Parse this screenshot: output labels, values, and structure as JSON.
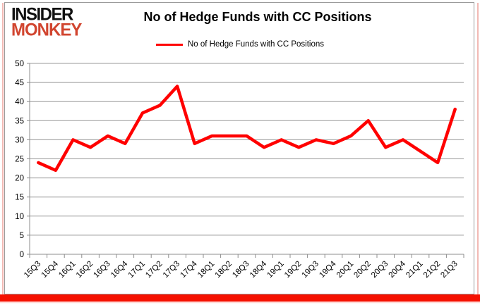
{
  "logo": {
    "line1": "INSIDER",
    "line2": "MONKEY",
    "line1_color": "#111111",
    "line2_color": "#d1452f"
  },
  "header": {
    "title": "No of Hedge Funds with CC Positions"
  },
  "legend": {
    "label": "No of Hedge Funds with CC Positions"
  },
  "chart_data": {
    "type": "line",
    "title": "No of Hedge Funds with CC Positions",
    "categories": [
      "15Q3",
      "15Q4",
      "16Q1",
      "16Q2",
      "16Q3",
      "16Q4",
      "17Q1",
      "17Q2",
      "17Q3",
      "17Q4",
      "18Q1",
      "18Q2",
      "18Q3",
      "18Q4",
      "19Q1",
      "19Q2",
      "19Q3",
      "19Q4",
      "20Q1",
      "20Q2",
      "20Q3",
      "20Q4",
      "21Q1",
      "21Q2",
      "21Q3"
    ],
    "series": [
      {
        "name": "No of Hedge Funds with CC Positions",
        "color": "#ff0000",
        "values": [
          24,
          22,
          30,
          28,
          31,
          29,
          37,
          39,
          44,
          29,
          31,
          31,
          31,
          28,
          30,
          28,
          30,
          29,
          31,
          35,
          28,
          30,
          27,
          24,
          38
        ]
      }
    ],
    "ylim": [
      0,
      50
    ],
    "y_ticks": [
      0,
      5,
      10,
      15,
      20,
      25,
      30,
      35,
      40,
      45,
      50
    ],
    "grid": true,
    "legend_position": "top",
    "xlabel": "",
    "ylabel": ""
  },
  "frame": {
    "border_color": "#9a9a9a",
    "shadow_color": "#f2b9b4",
    "accent_bar_color": "#f51000",
    "grid_color": "#989898",
    "axis_color": "#8c8c8c",
    "text_color": "#000000"
  }
}
